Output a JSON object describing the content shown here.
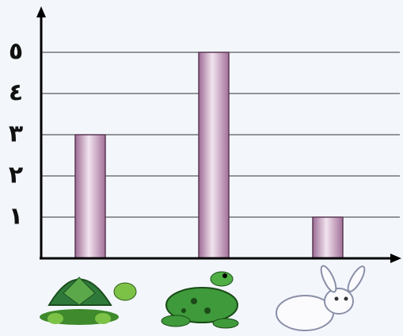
{
  "chart_data": {
    "type": "bar",
    "categories": [
      null,
      null,
      null
    ],
    "values": [
      3,
      5,
      1
    ],
    "color": "#c9a2c4",
    "ylim": [
      0,
      6
    ],
    "yticks": [
      {
        "value": 1,
        "label": "١"
      },
      {
        "value": 2,
        "label": "٢"
      },
      {
        "value": 3,
        "label": "٣"
      },
      {
        "value": 4,
        "label": "٤"
      },
      {
        "value": 5,
        "label": "٥"
      }
    ],
    "grid": true
  }
}
